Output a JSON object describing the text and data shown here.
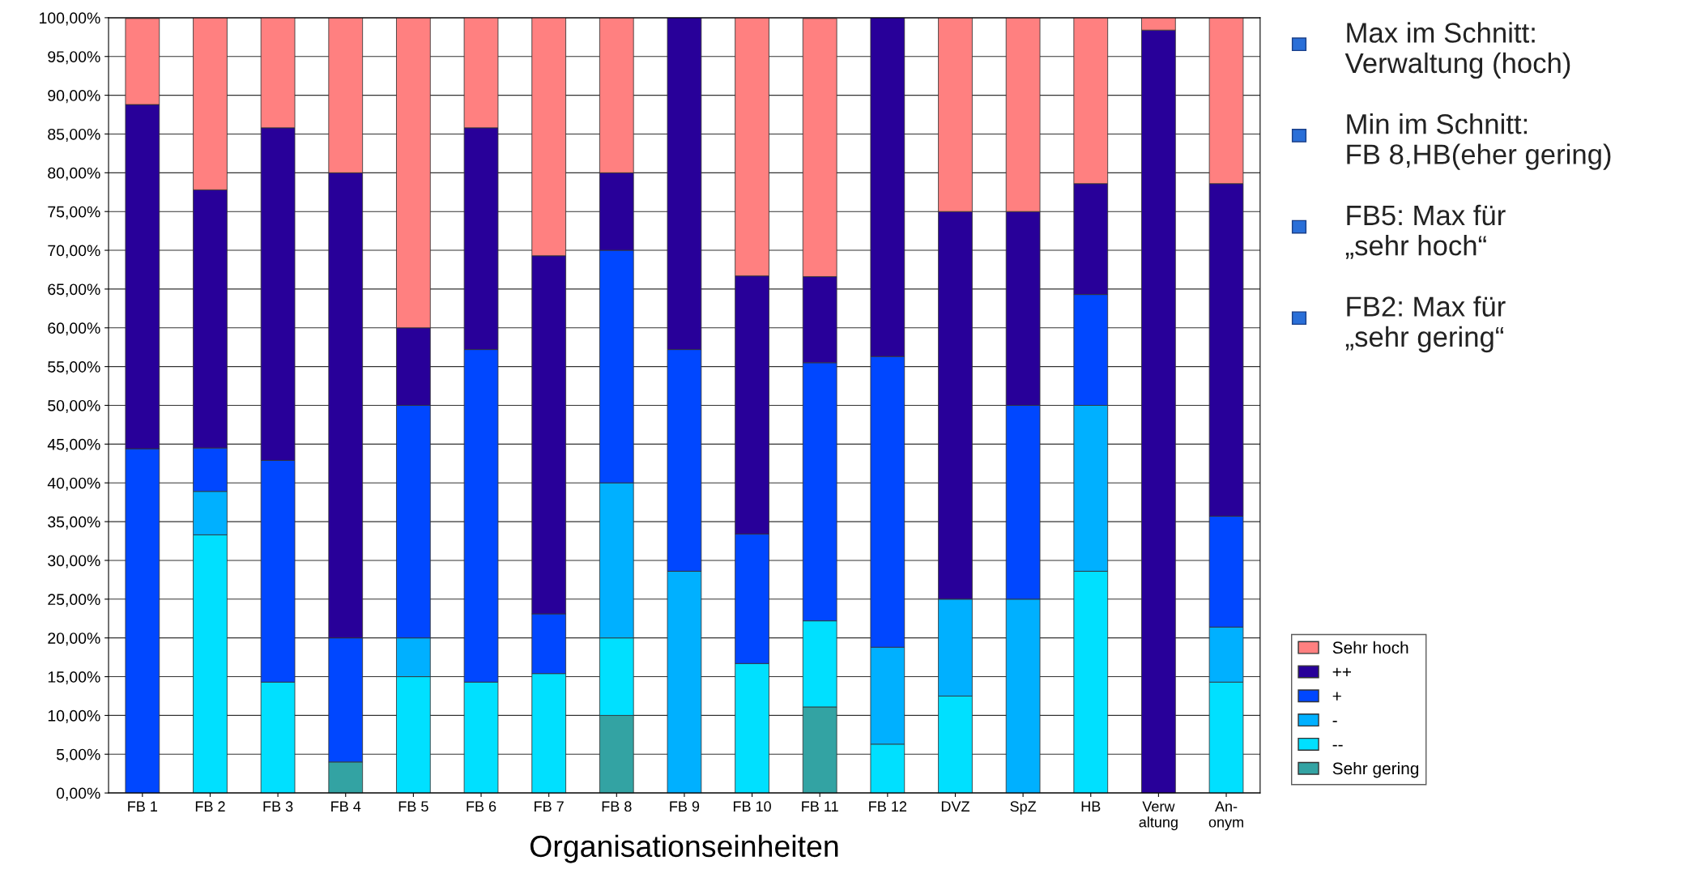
{
  "chart_data": {
    "type": "bar",
    "stacked": true,
    "xlabel": "Organisationseinheiten",
    "categories": [
      "FB 1",
      "FB 2",
      "FB 3",
      "FB 4",
      "FB 5",
      "FB 6",
      "FB 7",
      "FB 8",
      "FB 9",
      "FB 10",
      "FB 11",
      "FB 12",
      "DVZ",
      "SpZ",
      "HB",
      "Verw\naltung",
      "An-\nonym"
    ],
    "series": [
      {
        "name": "Sehr gering",
        "color": "#33a3a3",
        "values": [
          0,
          0,
          0,
          4,
          0,
          0,
          0,
          10,
          0,
          0,
          11.1,
          0,
          0,
          0,
          0,
          0,
          0
        ]
      },
      {
        "name": "--",
        "color": "#00e0ff",
        "values": [
          0,
          33.3,
          14.3,
          0,
          15,
          14.3,
          15.4,
          10,
          0,
          16.7,
          11.1,
          6.3,
          12.5,
          0,
          28.6,
          0,
          14.3
        ]
      },
      {
        "name": "-",
        "color": "#00b0ff",
        "values": [
          0,
          5.6,
          0,
          0,
          5,
          0,
          0,
          20,
          28.6,
          0,
          0,
          12.5,
          12.5,
          25,
          21.4,
          0,
          7.1
        ]
      },
      {
        "name": "+",
        "color": "#0047ff",
        "values": [
          44.4,
          5.6,
          28.6,
          16,
          30,
          42.9,
          7.7,
          30,
          28.6,
          16.7,
          33.3,
          37.5,
          0,
          25,
          14.3,
          0,
          14.3
        ]
      },
      {
        "name": "++",
        "color": "#280099",
        "values": [
          44.4,
          33.3,
          42.9,
          60,
          10,
          28.6,
          46.2,
          10,
          42.9,
          33.3,
          11.1,
          43.8,
          50,
          25,
          14.3,
          98.4,
          42.9
        ]
      },
      {
        "name": "Sehr hoch",
        "color": "#ff8080",
        "values": [
          11.1,
          22.2,
          14.3,
          20,
          40,
          14.3,
          30.8,
          20,
          0,
          33.3,
          33.3,
          0,
          25,
          25,
          21.4,
          1.6,
          21.4
        ]
      }
    ],
    "ylim": [
      0,
      100
    ],
    "yticks": [
      {
        "value": 0,
        "label": "0,00%"
      },
      {
        "value": 5,
        "label": "5,00%"
      },
      {
        "value": 10,
        "label": "10,00%"
      },
      {
        "value": 15,
        "label": "15,00%"
      },
      {
        "value": 20,
        "label": "20,00%"
      },
      {
        "value": 25,
        "label": "25,00%"
      },
      {
        "value": 30,
        "label": "30,00%"
      },
      {
        "value": 35,
        "label": "35,00%"
      },
      {
        "value": 40,
        "label": "40,00%"
      },
      {
        "value": 45,
        "label": "45,00%"
      },
      {
        "value": 50,
        "label": "50,00%"
      },
      {
        "value": 55,
        "label": "55,00%"
      },
      {
        "value": 60,
        "label": "60,00%"
      },
      {
        "value": 65,
        "label": "65,00%"
      },
      {
        "value": 70,
        "label": "70,00%"
      },
      {
        "value": 75,
        "label": "75,00%"
      },
      {
        "value": 80,
        "label": "80,00%"
      },
      {
        "value": 85,
        "label": "85,00%"
      },
      {
        "value": 90,
        "label": "90,00%"
      },
      {
        "value": 95,
        "label": "95,00%"
      },
      {
        "value": 100,
        "label": "100,00%"
      }
    ],
    "grid": "y",
    "legend": "right",
    "annotations": [
      "Max im Schnitt:\nVerwaltung (hoch)",
      "Min im Schnitt:\nFB 8,HB(eher gering)",
      "FB5: Max für\n„sehr hoch“",
      "FB2: Max für\n„sehr gering“"
    ]
  }
}
